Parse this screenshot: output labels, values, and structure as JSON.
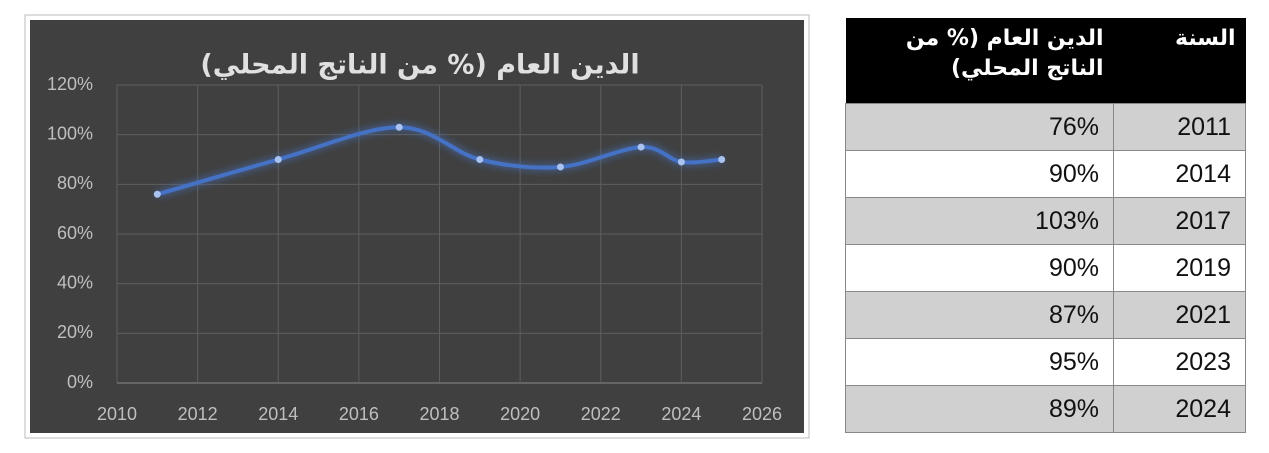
{
  "chart_data": {
    "type": "line",
    "title": "الدين العام (% من الناتج المحلي)",
    "x": [
      2011,
      2014,
      2017,
      2019,
      2021,
      2023,
      2024,
      2025
    ],
    "values": [
      76,
      90,
      103,
      90,
      87,
      95,
      89,
      90
    ],
    "color": "#4472c4",
    "smooth": true,
    "grid": true,
    "xlim": [
      2010,
      2026
    ],
    "xticks": [
      2010,
      2012,
      2014,
      2016,
      2018,
      2020,
      2022,
      2024,
      2026
    ],
    "ylim": [
      0,
      120
    ],
    "yticks": [
      {
        "value": 0,
        "label": "0%"
      },
      {
        "value": 20,
        "label": "20%"
      },
      {
        "value": 40,
        "label": "40%"
      },
      {
        "value": 60,
        "label": "60%"
      },
      {
        "value": 80,
        "label": "80%"
      },
      {
        "value": 100,
        "label": "100%"
      },
      {
        "value": 120,
        "label": "120%"
      }
    ]
  },
  "table": {
    "header": [
      "السنة",
      "الدين العام (% من الناتج المحلي)"
    ],
    "rows": [
      [
        "2011",
        "76%"
      ],
      [
        "2014",
        "90%"
      ],
      [
        "2017",
        "103%"
      ],
      [
        "2019",
        "90%"
      ],
      [
        "2021",
        "87%"
      ],
      [
        "2023",
        "95%"
      ],
      [
        "2024",
        "89%"
      ]
    ]
  }
}
